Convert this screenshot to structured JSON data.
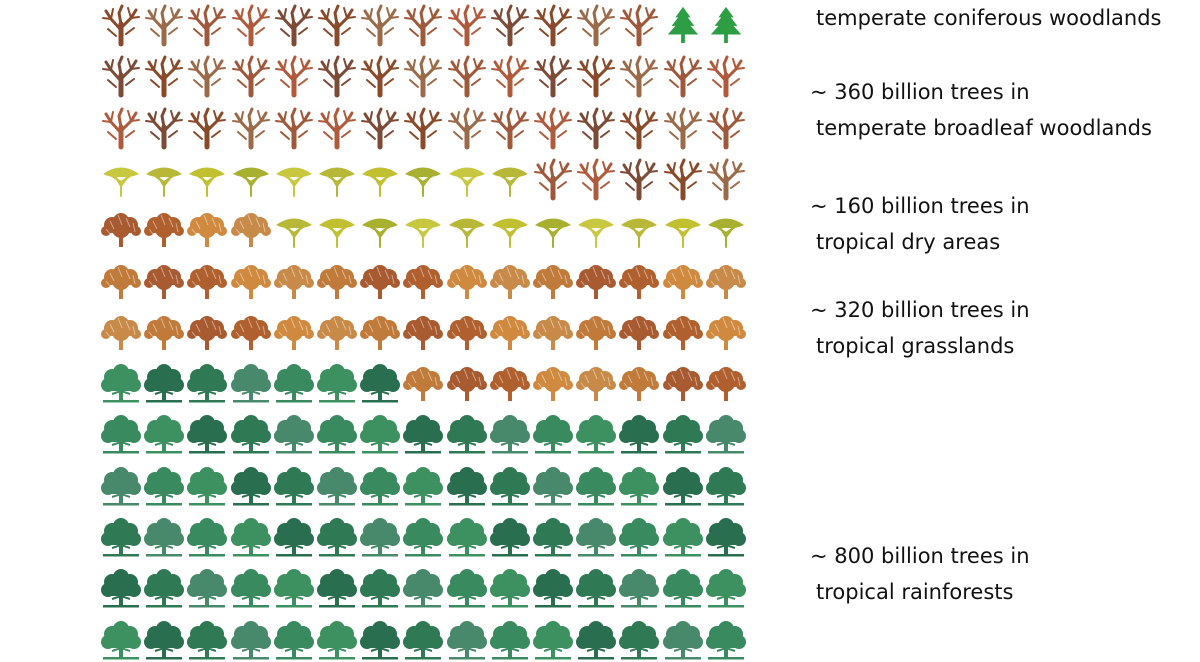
{
  "legend": {
    "coniferous": {
      "line2": "temperate coniferous woodlands"
    },
    "broadleaf": {
      "line1": "~ 360 billion trees in",
      "line2": "temperate broadleaf woodlands"
    },
    "dry": {
      "line1": "~ 160 billion trees in",
      "line2": "tropical dry areas"
    },
    "grassland": {
      "line1": "~ 320 billion trees in",
      "line2": "tropical grasslands"
    },
    "rainforest": {
      "line1": "~ 800 billion trees in",
      "line2": "tropical rainforests"
    }
  },
  "icons": {
    "conifer": "conifer-tree-icon",
    "bare": "bare-tree-icon",
    "acacia": "acacia-tree-icon",
    "autumn": "autumn-tree-icon",
    "green": "green-tree-icon"
  },
  "colors": {
    "conifer": "#2e9e45",
    "bare": [
      "#8a4a2a",
      "#a0583a",
      "#7d4a36",
      "#9b6a48",
      "#b05a3c"
    ],
    "acacia": [
      "#b8b838",
      "#c8c840",
      "#a8b030",
      "#c0c030"
    ],
    "autumn": [
      "#c07a3a",
      "#b0602e",
      "#c88a48",
      "#a85a30",
      "#d08a40"
    ],
    "green": [
      "#2f7a55",
      "#3a8a60",
      "#2a6e50",
      "#47896a",
      "#3d9060"
    ]
  },
  "grid_rows": [
    [
      "bare",
      "bare",
      "bare",
      "bare",
      "bare",
      "bare",
      "bare",
      "bare",
      "bare",
      "bare",
      "bare",
      "bare",
      "bare",
      "conifer",
      "conifer"
    ],
    [
      "bare",
      "bare",
      "bare",
      "bare",
      "bare",
      "bare",
      "bare",
      "bare",
      "bare",
      "bare",
      "bare",
      "bare",
      "bare",
      "bare",
      "bare"
    ],
    [
      "bare",
      "bare",
      "bare",
      "bare",
      "bare",
      "bare",
      "bare",
      "bare",
      "bare",
      "bare",
      "bare",
      "bare",
      "bare",
      "bare",
      "bare"
    ],
    [
      "acacia",
      "acacia",
      "acacia",
      "acacia",
      "acacia",
      "acacia",
      "acacia",
      "acacia",
      "acacia",
      "acacia",
      "bare",
      "bare",
      "bare",
      "bare",
      "bare"
    ],
    [
      "autumn",
      "autumn",
      "autumn",
      "autumn",
      "acacia",
      "acacia",
      "acacia",
      "acacia",
      "acacia",
      "acacia",
      "acacia",
      "acacia",
      "acacia",
      "acacia",
      "acacia"
    ],
    [
      "autumn",
      "autumn",
      "autumn",
      "autumn",
      "autumn",
      "autumn",
      "autumn",
      "autumn",
      "autumn",
      "autumn",
      "autumn",
      "autumn",
      "autumn",
      "autumn",
      "autumn"
    ],
    [
      "autumn",
      "autumn",
      "autumn",
      "autumn",
      "autumn",
      "autumn",
      "autumn",
      "autumn",
      "autumn",
      "autumn",
      "autumn",
      "autumn",
      "autumn",
      "autumn",
      "autumn"
    ],
    [
      "green",
      "green",
      "green",
      "green",
      "green",
      "green",
      "green",
      "autumn",
      "autumn",
      "autumn",
      "autumn",
      "autumn",
      "autumn",
      "autumn",
      "autumn"
    ],
    [
      "green",
      "green",
      "green",
      "green",
      "green",
      "green",
      "green",
      "green",
      "green",
      "green",
      "green",
      "green",
      "green",
      "green",
      "green"
    ],
    [
      "green",
      "green",
      "green",
      "green",
      "green",
      "green",
      "green",
      "green",
      "green",
      "green",
      "green",
      "green",
      "green",
      "green",
      "green"
    ],
    [
      "green",
      "green",
      "green",
      "green",
      "green",
      "green",
      "green",
      "green",
      "green",
      "green",
      "green",
      "green",
      "green",
      "green",
      "green"
    ],
    [
      "green",
      "green",
      "green",
      "green",
      "green",
      "green",
      "green",
      "green",
      "green",
      "green",
      "green",
      "green",
      "green",
      "green",
      "green"
    ],
    [
      "green",
      "green",
      "green",
      "green",
      "green",
      "green",
      "green",
      "green",
      "green",
      "green",
      "green",
      "green",
      "green",
      "green",
      "green"
    ]
  ]
}
